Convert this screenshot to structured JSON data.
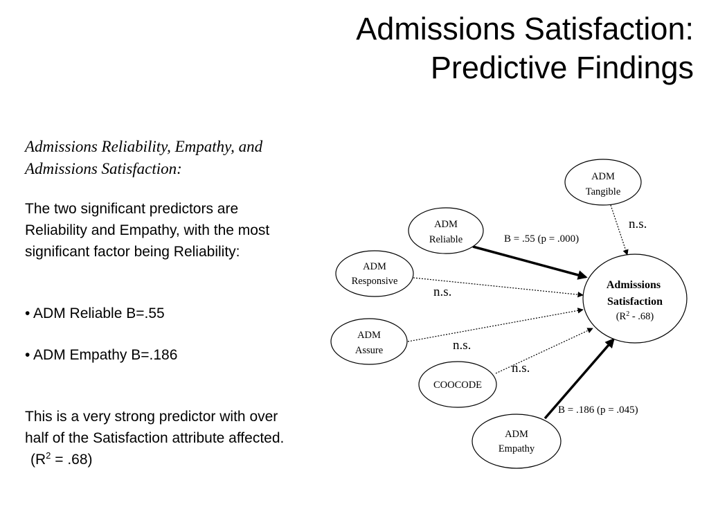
{
  "title": {
    "line1": "Admissions Satisfaction:",
    "line2": "Predictive Findings"
  },
  "left_text": {
    "subheading_line1": "Admissions Reliability, Empathy, and",
    "subheading_line2": "Admissions Satisfaction:",
    "para1_line1": "The two significant predictors are",
    "para1_line2": "Reliability and Empathy, with the most",
    "para1_line3": "significant factor being Reliability:",
    "bullet1": "• ADM Reliable  B=.55",
    "bullet2": "• ADM Empathy B=.186",
    "para2_line1": "This is a very strong predictor with over",
    "para2_line2": "half of the Satisfaction attribute affected.",
    "r2_prefix": "(R",
    "r2_sup": "2",
    "r2_suffix": " = .68)"
  },
  "diagram": {
    "nodes": {
      "tangible": {
        "line1": "ADM",
        "line2": "Tangible"
      },
      "reliable": {
        "line1": "ADM",
        "line2": "Reliable"
      },
      "responsive": {
        "line1": "ADM",
        "line2": "Responsive"
      },
      "assure": {
        "line1": "ADM",
        "line2": "Assure"
      },
      "coocode": {
        "line1": "COOCODE"
      },
      "empathy": {
        "line1": "ADM",
        "line2": "Empathy"
      },
      "satisfaction": {
        "line1": "Admissions",
        "line2": "Satisfaction",
        "r2_prefix": "(R",
        "r2_sup": "2",
        "r2_suffix": " - .68)"
      }
    },
    "edge_labels": {
      "reliable": "B = .55 (p = .000)",
      "tangible": "n.s.",
      "responsive": "n.s.",
      "assure": "n.s.",
      "coocode": "n.s.",
      "empathy": "B = .186 (p = .045)"
    }
  }
}
